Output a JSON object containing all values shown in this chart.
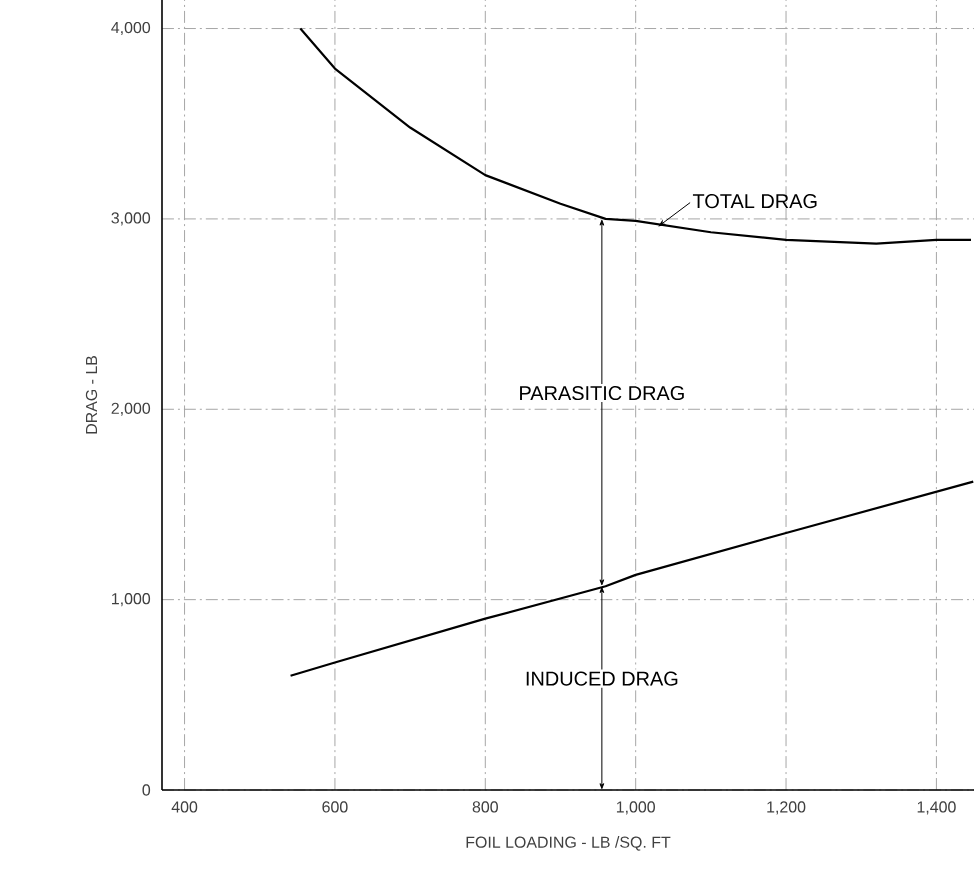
{
  "chart_data": {
    "type": "line",
    "xlabel": "FOIL LOADING - LB /SQ. FT",
    "ylabel": "DRAG - LB",
    "xlim": [
      370,
      1450
    ],
    "ylim": [
      0,
      4150
    ],
    "xticks": [
      400,
      600,
      800,
      {
        "value": 1000,
        "label": "1,000"
      },
      {
        "value": 1200,
        "label": "1,200"
      },
      {
        "value": 1400,
        "label": "1,400"
      }
    ],
    "yticks": [
      0,
      {
        "value": 1000,
        "label": "1,000"
      },
      {
        "value": 2000,
        "label": "2,000"
      },
      {
        "value": 3000,
        "label": "3,000"
      },
      {
        "value": 4000,
        "label": "4,000"
      }
    ],
    "grid": true,
    "marker": "none",
    "line_style": "solid",
    "series": [
      {
        "color": "#000000",
        "x": [
          554,
          600,
          700,
          800,
          900,
          960,
          1000,
          1100,
          1200,
          1320,
          1400,
          1446
        ],
        "values": [
          4000,
          3790,
          3480,
          3230,
          3080,
          3000,
          2990,
          2930,
          2890,
          2870,
          2890,
          2890
        ]
      },
      {
        "color": "#000000",
        "x": [
          541,
          600,
          800,
          960,
          1000,
          1200,
          1449
        ],
        "values": [
          600,
          670,
          900,
          1070,
          1130,
          1350,
          1620
        ]
      }
    ],
    "annotations": [
      {
        "text": "TOTAL DRAG",
        "x": 1030,
        "y": 2960
      },
      "PARASITIC DRAG",
      "INDUCED DRAG"
    ]
  }
}
